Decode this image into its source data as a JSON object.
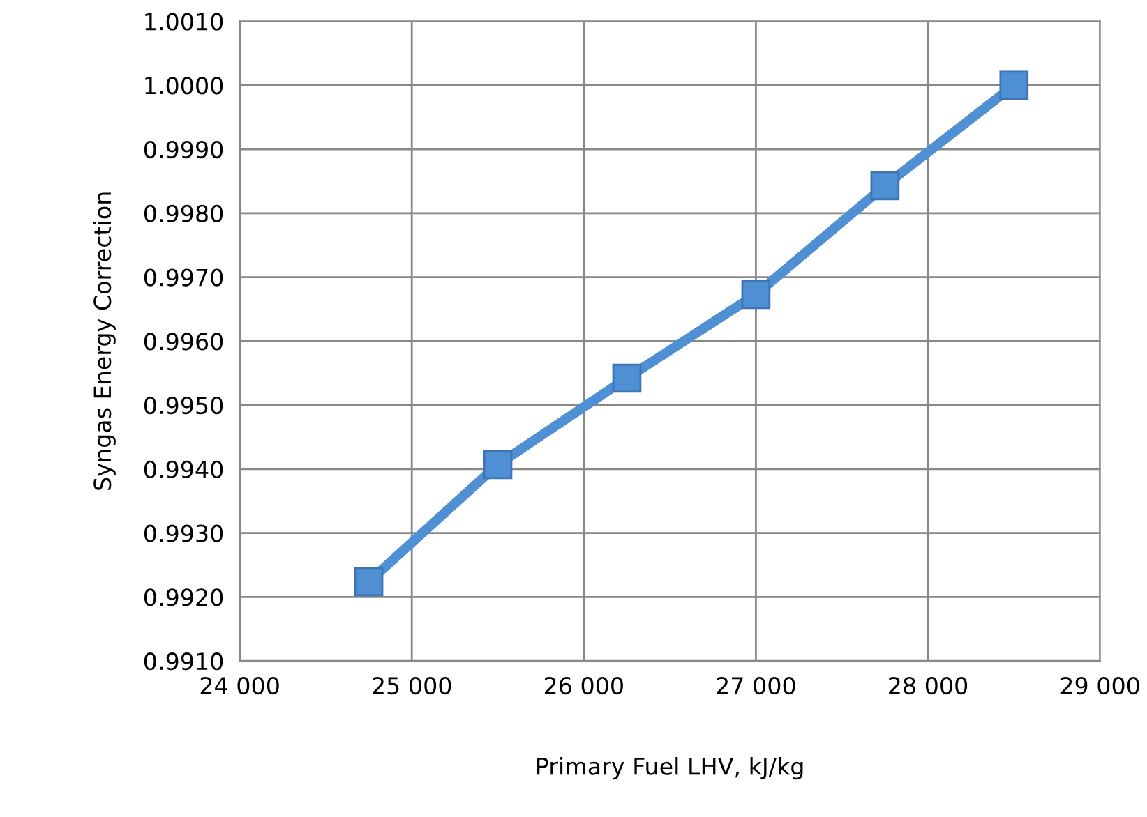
{
  "chart_data": {
    "type": "line",
    "xlabel": "Primary Fuel LHV, kJ/kg",
    "ylabel": "Syngas Energy Correction",
    "x": [
      24750,
      25500,
      26250,
      27000,
      27750,
      28500
    ],
    "series": [
      {
        "color": "#4f8fd3",
        "values": [
          0.99224,
          0.99407,
          0.99542,
          0.99673,
          0.99843,
          1.0
        ]
      }
    ],
    "xlim": [
      24000,
      29000
    ],
    "xticks": [
      {
        "value": 24000,
        "label": "24 000"
      },
      {
        "value": 25000,
        "label": "25 000"
      },
      {
        "value": 26000,
        "label": "26 000"
      },
      {
        "value": 27000,
        "label": "27 000"
      },
      {
        "value": 28000,
        "label": "28 000"
      },
      {
        "value": 29000,
        "label": "29 000"
      }
    ],
    "ylim": [
      0.991,
      1.001
    ],
    "yticks": [
      {
        "value": 0.991,
        "label": "0.9910"
      },
      {
        "value": 0.992,
        "label": "0.9920"
      },
      {
        "value": 0.993,
        "label": "0.9930"
      },
      {
        "value": 0.994,
        "label": "0.9940"
      },
      {
        "value": 0.995,
        "label": "0.9950"
      },
      {
        "value": 0.996,
        "label": "0.9960"
      },
      {
        "value": 0.997,
        "label": "0.9970"
      },
      {
        "value": 0.998,
        "label": "0.9980"
      },
      {
        "value": 0.999,
        "label": "0.9990"
      },
      {
        "value": 1.0,
        "label": "1.0000"
      },
      {
        "value": 1.001,
        "label": "1.0010"
      }
    ],
    "grid": true,
    "marker": "square",
    "line_style": "solid",
    "legend": false
  }
}
